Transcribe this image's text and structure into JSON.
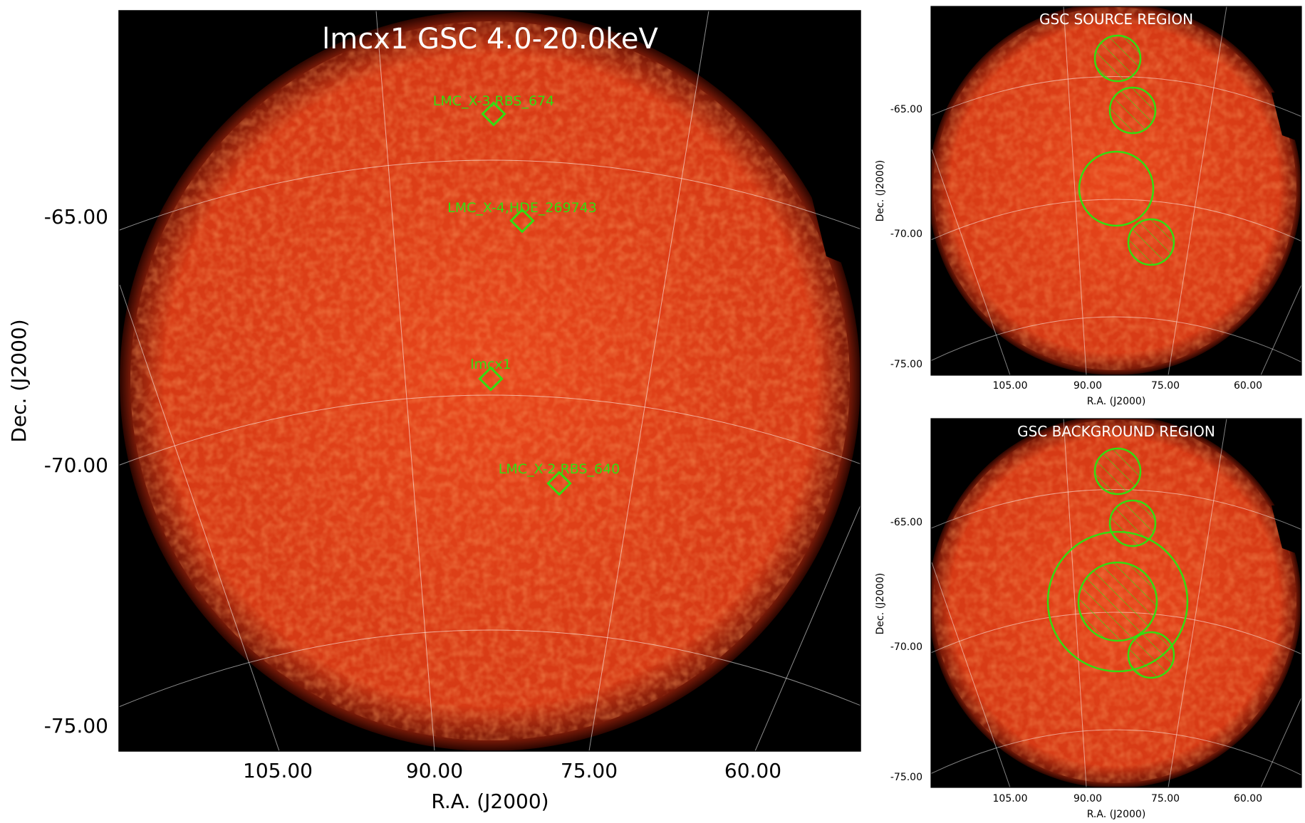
{
  "main": {
    "title": "lmcx1 GSC 4.0-20.0keV",
    "xlabel": "R.A. (J2000)",
    "ylabel": "Dec. (J2000)",
    "xticks": [
      "105.00",
      "90.00",
      "75.00",
      "60.00"
    ],
    "yticks": [
      "-65.00",
      "-70.00",
      "-75.00"
    ],
    "sources": [
      {
        "label": "LMC_X-3,RBS_674"
      },
      {
        "label": "LMC_X-4,HDE_269743"
      },
      {
        "label": "lmcx1"
      },
      {
        "label": "LMC_X-2,RBS_640"
      }
    ]
  },
  "source_panel": {
    "title": "GSC SOURCE REGION",
    "xlabel": "R.A. (J2000)",
    "ylabel": "Dec. (J2000)",
    "xticks": [
      "105.00",
      "90.00",
      "75.00",
      "60.00"
    ],
    "yticks": [
      "-65.00",
      "-70.00",
      "-75.00"
    ]
  },
  "background_panel": {
    "title": "GSC BACKGROUND REGION",
    "xlabel": "R.A. (J2000)",
    "ylabel": "Dec. (J2000)",
    "xticks": [
      "105.00",
      "90.00",
      "75.00",
      "60.00"
    ],
    "yticks": [
      "-65.00",
      "-70.00",
      "-75.00"
    ]
  },
  "colors": {
    "map_orange": "#e0441a",
    "region_green": "#33dd11",
    "grid": "#ffffff"
  }
}
